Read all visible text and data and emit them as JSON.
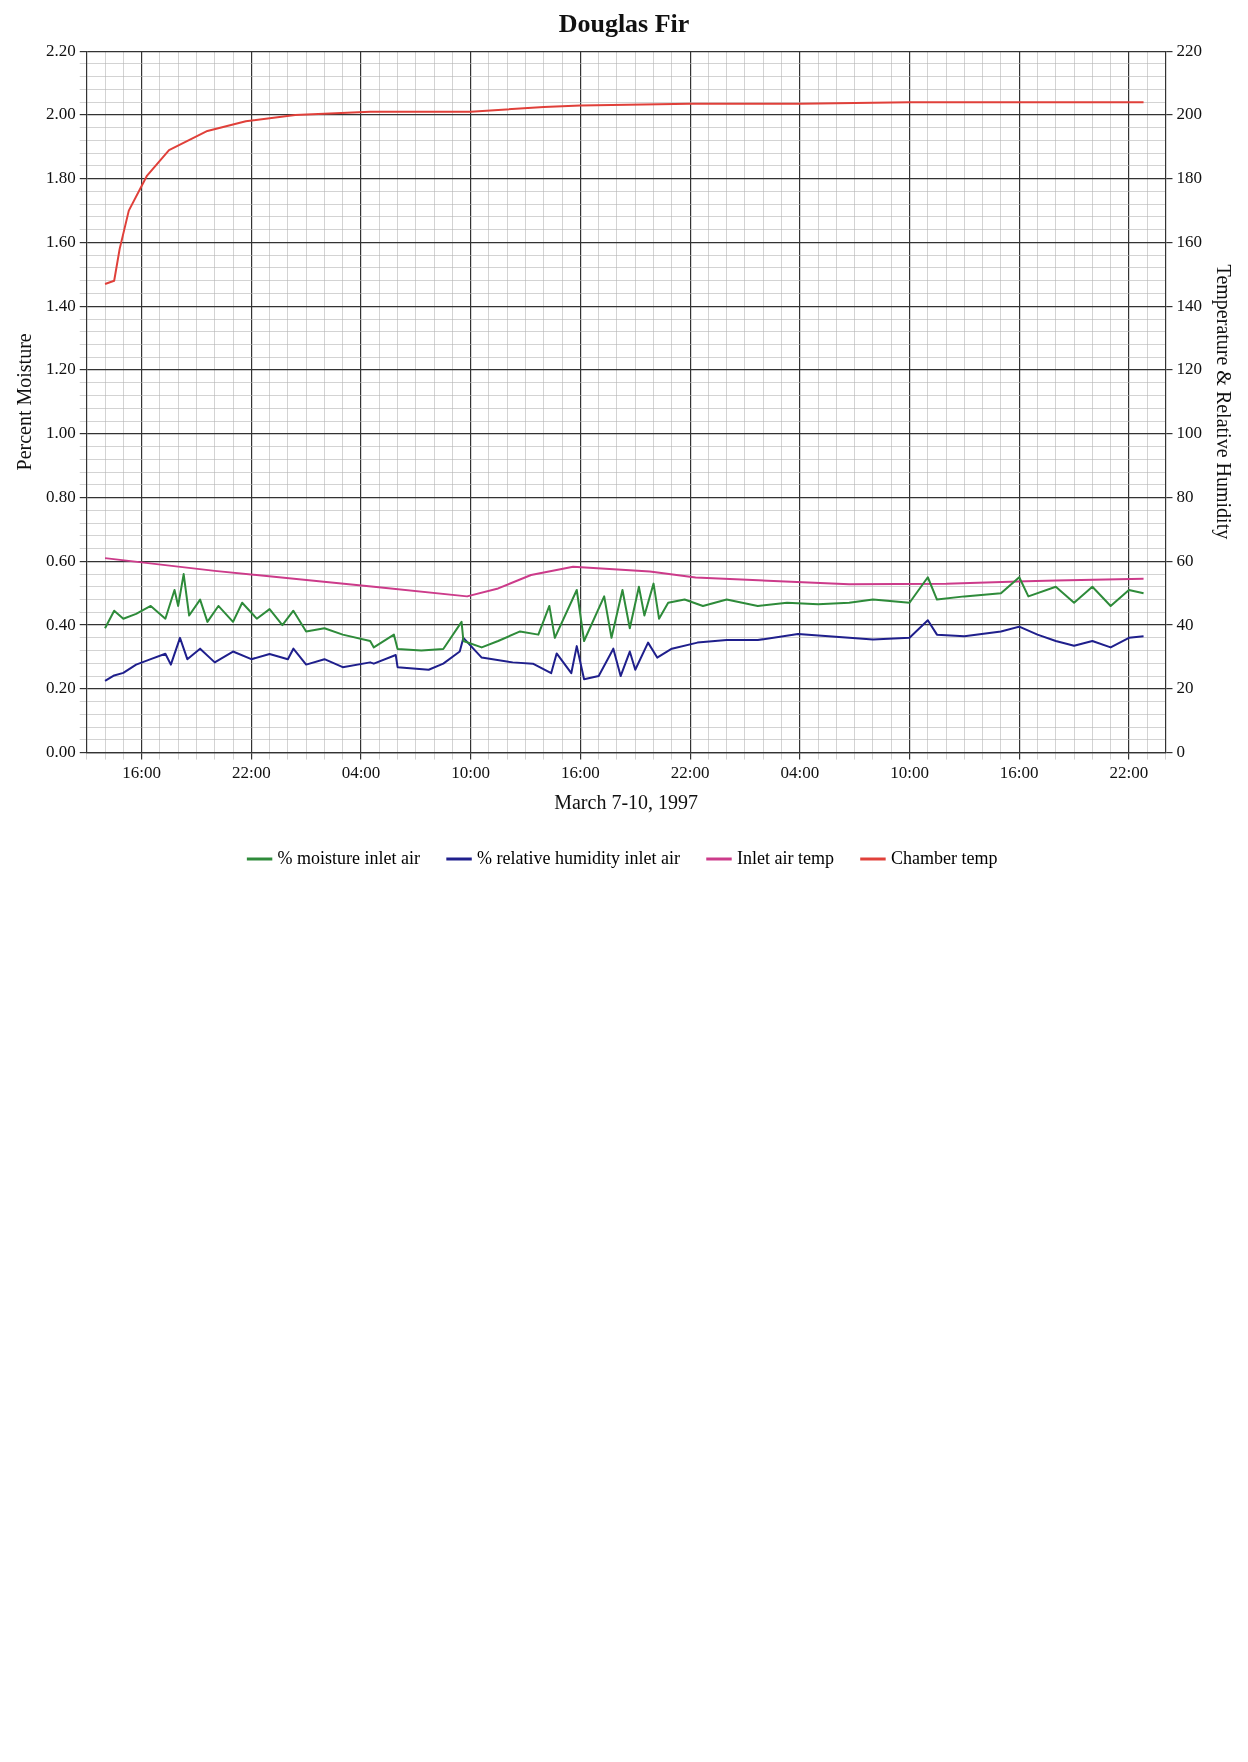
{
  "chart_data": {
    "type": "line",
    "title": "Douglas Fir",
    "xlabel": "March 7-10, 1997",
    "ylabel": "Percent Moisture",
    "y2label": "Temperature & Relative Humidity",
    "xlim": [
      "1997-03-07T13:00",
      "1997-03-10T00:00"
    ],
    "xticks": [
      {
        "value": "1997-03-07T13:00",
        "label": null
      },
      {
        "value": "1997-03-07T14:00",
        "label": null
      },
      {
        "value": "1997-03-07T15:00",
        "label": null
      },
      {
        "value": "1997-03-07T16:00",
        "label": "16:00"
      },
      {
        "value": "1997-03-07T17:00",
        "label": null
      },
      {
        "value": "1997-03-07T18:00",
        "label": null
      },
      {
        "value": "1997-03-07T19:00",
        "label": null
      },
      {
        "value": "1997-03-07T20:00",
        "label": null
      },
      {
        "value": "1997-03-07T21:00",
        "label": null
      },
      {
        "value": "1997-03-07T22:00",
        "label": "22:00"
      },
      {
        "value": "1997-03-07T23:00",
        "label": null
      },
      {
        "value": "1997-03-08T00:00",
        "label": null
      },
      {
        "value": "1997-03-08T01:00",
        "label": null
      },
      {
        "value": "1997-03-08T02:00",
        "label": null
      },
      {
        "value": "1997-03-08T03:00",
        "label": null
      },
      {
        "value": "1997-03-08T04:00",
        "label": "04:00"
      },
      {
        "value": "1997-03-08T05:00",
        "label": null
      },
      {
        "value": "1997-03-08T06:00",
        "label": null
      },
      {
        "value": "1997-03-08T07:00",
        "label": null
      },
      {
        "value": "1997-03-08T08:00",
        "label": null
      },
      {
        "value": "1997-03-08T09:00",
        "label": null
      },
      {
        "value": "1997-03-08T10:00",
        "label": "10:00"
      },
      {
        "value": "1997-03-08T11:00",
        "label": null
      },
      {
        "value": "1997-03-08T12:00",
        "label": null
      },
      {
        "value": "1997-03-08T13:00",
        "label": null
      },
      {
        "value": "1997-03-08T14:00",
        "label": null
      },
      {
        "value": "1997-03-08T15:00",
        "label": null
      },
      {
        "value": "1997-03-08T16:00",
        "label": "16:00"
      },
      {
        "value": "1997-03-08T17:00",
        "label": null
      },
      {
        "value": "1997-03-08T18:00",
        "label": null
      },
      {
        "value": "1997-03-08T19:00",
        "label": null
      },
      {
        "value": "1997-03-08T20:00",
        "label": null
      },
      {
        "value": "1997-03-08T21:00",
        "label": null
      },
      {
        "value": "1997-03-08T22:00",
        "label": "22:00"
      },
      {
        "value": "1997-03-08T23:00",
        "label": null
      },
      {
        "value": "1997-03-09T00:00",
        "label": null
      },
      {
        "value": "1997-03-09T01:00",
        "label": null
      },
      {
        "value": "1997-03-09T02:00",
        "label": null
      },
      {
        "value": "1997-03-09T03:00",
        "label": null
      },
      {
        "value": "1997-03-09T04:00",
        "label": "04:00"
      },
      {
        "value": "1997-03-09T05:00",
        "label": null
      },
      {
        "value": "1997-03-09T06:00",
        "label": null
      },
      {
        "value": "1997-03-09T07:00",
        "label": null
      },
      {
        "value": "1997-03-09T08:00",
        "label": null
      },
      {
        "value": "1997-03-09T09:00",
        "label": null
      },
      {
        "value": "1997-03-09T10:00",
        "label": "10:00"
      },
      {
        "value": "1997-03-09T11:00",
        "label": null
      },
      {
        "value": "1997-03-09T12:00",
        "label": null
      },
      {
        "value": "1997-03-09T13:00",
        "label": null
      },
      {
        "value": "1997-03-09T14:00",
        "label": null
      },
      {
        "value": "1997-03-09T15:00",
        "label": null
      },
      {
        "value": "1997-03-09T16:00",
        "label": "16:00"
      },
      {
        "value": "1997-03-09T17:00",
        "label": null
      },
      {
        "value": "1997-03-09T18:00",
        "label": null
      },
      {
        "value": "1997-03-09T19:00",
        "label": null
      },
      {
        "value": "1997-03-09T20:00",
        "label": null
      },
      {
        "value": "1997-03-09T21:00",
        "label": null
      },
      {
        "value": "1997-03-09T22:00",
        "label": "22:00"
      },
      {
        "value": "1997-03-09T23:00",
        "label": null
      },
      {
        "value": "1997-03-10T00:00",
        "label": null
      }
    ],
    "ylim": [
      0,
      2.2
    ],
    "yticks": [
      {
        "value": 0,
        "label": "0.00"
      },
      {
        "value": 0.04,
        "label": null
      },
      {
        "value": 0.08,
        "label": null
      },
      {
        "value": 0.12,
        "label": null
      },
      {
        "value": 0.16,
        "label": null
      },
      {
        "value": 0.2,
        "label": "0.20"
      },
      {
        "value": 0.24,
        "label": null
      },
      {
        "value": 0.28,
        "label": null
      },
      {
        "value": 0.32,
        "label": null
      },
      {
        "value": 0.36,
        "label": null
      },
      {
        "value": 0.4,
        "label": "0.40"
      },
      {
        "value": 0.44,
        "label": null
      },
      {
        "value": 0.48,
        "label": null
      },
      {
        "value": 0.52,
        "label": null
      },
      {
        "value": 0.56,
        "label": null
      },
      {
        "value": 0.6,
        "label": "0.60"
      },
      {
        "value": 0.64,
        "label": null
      },
      {
        "value": 0.68,
        "label": null
      },
      {
        "value": 0.72,
        "label": null
      },
      {
        "value": 0.76,
        "label": null
      },
      {
        "value": 0.8,
        "label": "0.80"
      },
      {
        "value": 0.84,
        "label": null
      },
      {
        "value": 0.88,
        "label": null
      },
      {
        "value": 0.92,
        "label": null
      },
      {
        "value": 0.96,
        "label": null
      },
      {
        "value": 1,
        "label": "1.00"
      },
      {
        "value": 1.04,
        "label": null
      },
      {
        "value": 1.08,
        "label": null
      },
      {
        "value": 1.12,
        "label": null
      },
      {
        "value": 1.16,
        "label": null
      },
      {
        "value": 1.2,
        "label": "1.20"
      },
      {
        "value": 1.24,
        "label": null
      },
      {
        "value": 1.28,
        "label": null
      },
      {
        "value": 1.32,
        "label": null
      },
      {
        "value": 1.36,
        "label": null
      },
      {
        "value": 1.4,
        "label": "1.40"
      },
      {
        "value": 1.44,
        "label": null
      },
      {
        "value": 1.48,
        "label": null
      },
      {
        "value": 1.52,
        "label": null
      },
      {
        "value": 1.56,
        "label": null
      },
      {
        "value": 1.6,
        "label": "1.60"
      },
      {
        "value": 1.64,
        "label": null
      },
      {
        "value": 1.68,
        "label": null
      },
      {
        "value": 1.72,
        "label": null
      },
      {
        "value": 1.76,
        "label": null
      },
      {
        "value": 1.8,
        "label": "1.80"
      },
      {
        "value": 1.84,
        "label": null
      },
      {
        "value": 1.88,
        "label": null
      },
      {
        "value": 1.92,
        "label": null
      },
      {
        "value": 1.96,
        "label": null
      },
      {
        "value": 2,
        "label": "2.00"
      },
      {
        "value": 2.04,
        "label": null
      },
      {
        "value": 2.08,
        "label": null
      },
      {
        "value": 2.12,
        "label": null
      },
      {
        "value": 2.16,
        "label": null
      },
      {
        "value": 2.2,
        "label": "2.20"
      }
    ],
    "y2lim": [
      0,
      220
    ],
    "y2ticks": [
      0,
      20,
      40,
      60,
      80,
      100,
      120,
      140,
      160,
      180,
      200,
      220
    ],
    "grid": true,
    "legend": "bottom",
    "line_style": "solid",
    "series": [
      {
        "name": "% moisture inlet air",
        "color": "#2e8b3a",
        "x": [
          "1997-03-07T14:00",
          "1997-03-07T14:30",
          "1997-03-07T15:00",
          "1997-03-07T15:42",
          "1997-03-07T16:30",
          "1997-03-07T17:18",
          "1997-03-07T17:48",
          "1997-03-07T18:00",
          "1997-03-07T18:18",
          "1997-03-07T18:36",
          "1997-03-07T19:12",
          "1997-03-07T19:36",
          "1997-03-07T20:12",
          "1997-03-07T21:00",
          "1997-03-07T21:30",
          "1997-03-07T22:18",
          "1997-03-07T23:00",
          "1997-03-07T23:42",
          "1997-03-08T00:18",
          "1997-03-08T01:00",
          "1997-03-08T02:00",
          "1997-03-08T03:00",
          "1997-03-08T04:30",
          "1997-03-08T04:42",
          "1997-03-08T05:48",
          "1997-03-08T06:00",
          "1997-03-08T07:18",
          "1997-03-08T08:30",
          "1997-03-08T09:30",
          "1997-03-08T09:36",
          "1997-03-08T10:36",
          "1997-03-08T11:30",
          "1997-03-08T12:42",
          "1997-03-08T13:42",
          "1997-03-08T14:18",
          "1997-03-08T14:36",
          "1997-03-08T15:48",
          "1997-03-08T16:12",
          "1997-03-08T17:18",
          "1997-03-08T17:42",
          "1997-03-08T18:18",
          "1997-03-08T18:42",
          "1997-03-08T19:12",
          "1997-03-08T19:30",
          "1997-03-08T20:00",
          "1997-03-08T20:18",
          "1997-03-08T20:48",
          "1997-03-08T21:42",
          "1997-03-08T22:42",
          "1997-03-09T00:00",
          "1997-03-09T01:42",
          "1997-03-09T03:18",
          "1997-03-09T05:00",
          "1997-03-09T06:42",
          "1997-03-09T08:00",
          "1997-03-09T10:00",
          "1997-03-09T11:00",
          "1997-03-09T11:30",
          "1997-03-09T13:00",
          "1997-03-09T15:00",
          "1997-03-09T16:00",
          "1997-03-09T16:30",
          "1997-03-09T18:00",
          "1997-03-09T19:00",
          "1997-03-09T20:00",
          "1997-03-09T21:00",
          "1997-03-09T22:00",
          "1997-03-09T22:48"
        ],
        "values": [
          0.39,
          0.445,
          0.42,
          0.435,
          0.46,
          0.42,
          0.51,
          0.46,
          0.56,
          0.43,
          0.48,
          0.41,
          0.46,
          0.41,
          0.47,
          0.42,
          0.45,
          0.4,
          0.445,
          0.38,
          0.39,
          0.37,
          0.35,
          0.33,
          0.37,
          0.325,
          0.32,
          0.325,
          0.41,
          0.35,
          0.33,
          0.35,
          0.38,
          0.37,
          0.46,
          0.36,
          0.51,
          0.35,
          0.49,
          0.36,
          0.51,
          0.39,
          0.52,
          0.43,
          0.53,
          0.42,
          0.47,
          0.48,
          0.46,
          0.48,
          0.46,
          0.47,
          0.465,
          0.47,
          0.48,
          0.47,
          0.55,
          0.48,
          0.49,
          0.5,
          0.55,
          0.49,
          0.52,
          0.47,
          0.52,
          0.46,
          0.51,
          0.5
        ]
      },
      {
        "name": "% relative humidity inlet air",
        "color": "#1f1f8c",
        "axis": "y2",
        "x": [
          "1997-03-07T14:00",
          "1997-03-07T14:30",
          "1997-03-07T15:00",
          "1997-03-07T15:42",
          "1997-03-07T16:30",
          "1997-03-07T17:18",
          "1997-03-07T17:36",
          "1997-03-07T18:06",
          "1997-03-07T18:30",
          "1997-03-07T19:12",
          "1997-03-07T20:00",
          "1997-03-07T21:00",
          "1997-03-07T22:00",
          "1997-03-07T23:00",
          "1997-03-08T00:00",
          "1997-03-08T00:18",
          "1997-03-08T01:00",
          "1997-03-08T02:00",
          "1997-03-08T03:00",
          "1997-03-08T04:30",
          "1997-03-08T04:42",
          "1997-03-08T05:54",
          "1997-03-08T06:00",
          "1997-03-08T07:42",
          "1997-03-08T08:30",
          "1997-03-08T09:24",
          "1997-03-08T09:36",
          "1997-03-08T10:36",
          "1997-03-08T12:18",
          "1997-03-08T13:24",
          "1997-03-08T14:24",
          "1997-03-08T14:42",
          "1997-03-08T15:30",
          "1997-03-08T15:48",
          "1997-03-08T16:12",
          "1997-03-08T17:00",
          "1997-03-08T17:48",
          "1997-03-08T18:12",
          "1997-03-08T18:42",
          "1997-03-08T19:00",
          "1997-03-08T19:42",
          "1997-03-08T20:12",
          "1997-03-08T21:00",
          "1997-03-08T22:24",
          "1997-03-09T00:00",
          "1997-03-09T01:42",
          "1997-03-09T03:54",
          "1997-03-09T06:42",
          "1997-03-09T08:00",
          "1997-03-09T10:00",
          "1997-03-09T11:00",
          "1997-03-09T11:30",
          "1997-03-09T13:00",
          "1997-03-09T15:00",
          "1997-03-09T16:00",
          "1997-03-09T17:00",
          "1997-03-09T18:00",
          "1997-03-09T19:00",
          "1997-03-09T20:00",
          "1997-03-09T21:00",
          "1997-03-09T22:00",
          "1997-03-09T22:48"
        ],
        "values": [
          22.5,
          24.2,
          25,
          27.6,
          29.3,
          31,
          27.6,
          36,
          29.3,
          32.6,
          28.3,
          31.7,
          29.3,
          30.9,
          29.3,
          32.6,
          27.6,
          29.3,
          26.8,
          28.3,
          27.9,
          30.6,
          26.8,
          26,
          27.9,
          31.7,
          36,
          29.8,
          28.3,
          27.9,
          24.9,
          31.1,
          24.9,
          33.4,
          23,
          24,
          32.6,
          24,
          31.7,
          26,
          34.5,
          29.8,
          32.6,
          34.5,
          35.3,
          35.3,
          37.2,
          36,
          35.5,
          36,
          41.5,
          37,
          36.5,
          38,
          39.5,
          37,
          35,
          33.5,
          35,
          33,
          36,
          36.5
        ]
      },
      {
        "name": "Inlet air temp",
        "color": "#cc3b8a",
        "axis": "y2",
        "x": [
          "1997-03-07T14:00",
          "1997-03-07T20:00",
          "1997-03-08T04:42",
          "1997-03-08T09:48",
          "1997-03-08T11:30",
          "1997-03-08T13:18",
          "1997-03-08T15:36",
          "1997-03-08T19:48",
          "1997-03-08T22:18",
          "1997-03-09T06:42",
          "1997-03-09T12:00",
          "1997-03-09T18:00",
          "1997-03-09T22:48"
        ],
        "values": [
          61,
          57,
          52,
          49,
          51.5,
          55.7,
          58.3,
          56.8,
          54.9,
          52.8,
          53,
          54,
          54.5
        ]
      },
      {
        "name": "Chamber temp",
        "color": "#e0403a",
        "axis": "y2",
        "x": [
          "1997-03-07T14:00",
          "1997-03-07T14:30",
          "1997-03-07T14:48",
          "1997-03-07T15:18",
          "1997-03-07T16:18",
          "1997-03-07T17:30",
          "1997-03-07T19:36",
          "1997-03-07T21:42",
          "1997-03-08T00:24",
          "1997-03-08T04:30",
          "1997-03-08T10:00",
          "1997-03-08T14:00",
          "1997-03-08T16:00",
          "1997-03-08T22:00",
          "1997-03-09T04:00",
          "1997-03-09T10:00",
          "1997-03-09T16:00",
          "1997-03-09T22:48"
        ],
        "values": [
          147,
          148,
          158,
          170,
          181,
          189,
          195,
          198,
          200,
          201,
          201,
          202.5,
          203,
          203.5,
          203.5,
          204,
          204,
          204
        ]
      }
    ]
  }
}
